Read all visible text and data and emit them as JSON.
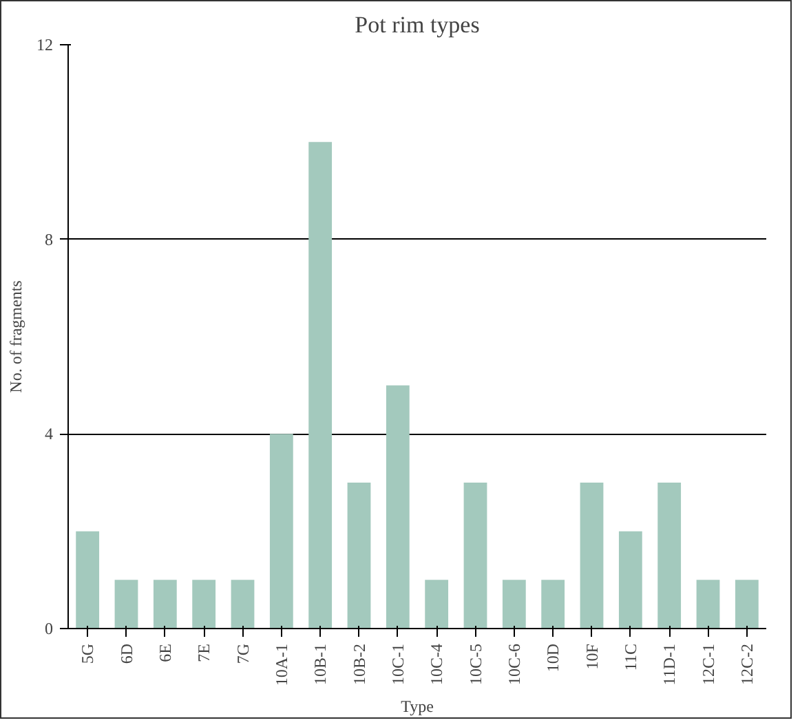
{
  "chart_data": {
    "type": "bar",
    "title": "Pot rim types",
    "xlabel": "Type",
    "ylabel": "No. of fragments",
    "categories": [
      "5G",
      "6D",
      "6E",
      "7E",
      "7G",
      "10A-1",
      "10B-1",
      "10B-2",
      "10C-1",
      "10C-4",
      "10C-5",
      "10C-6",
      "10D",
      "10F",
      "11C",
      "11D-1",
      "12C-1",
      "12C-2"
    ],
    "values": [
      2,
      1,
      1,
      1,
      1,
      4,
      10,
      3,
      5,
      1,
      3,
      1,
      1,
      3,
      2,
      3,
      1,
      1
    ],
    "color": "#a3c9bd",
    "ylim": [
      0,
      12
    ],
    "yticks": [
      0,
      4,
      8,
      12
    ],
    "grid": "y"
  }
}
